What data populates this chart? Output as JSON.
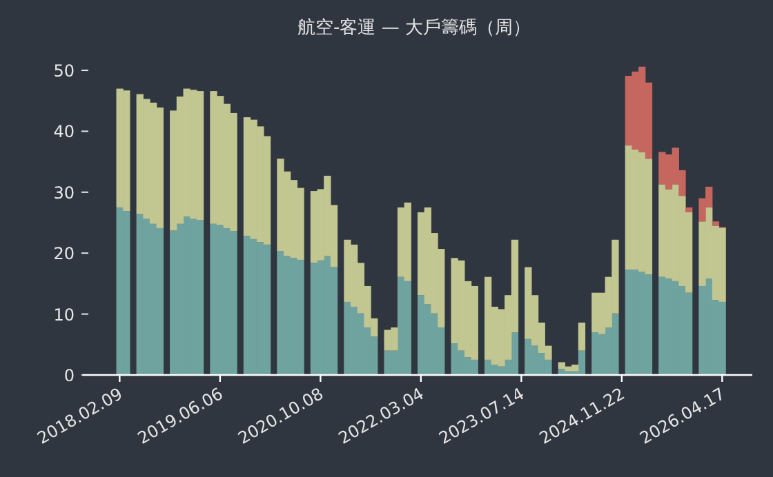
{
  "chart_data": {
    "type": "bar",
    "stacked": true,
    "title": "航空-客運 — 大戶籌碼（周）",
    "categories": [
      "2018.02.09",
      null,
      null,
      null,
      null,
      null,
      null,
      null,
      null,
      null,
      null,
      null,
      null,
      null,
      null,
      "2019.06.06",
      null,
      null,
      null,
      null,
      null,
      null,
      null,
      null,
      null,
      null,
      null,
      null,
      null,
      null,
      "2020.10.08",
      null,
      null,
      null,
      null,
      null,
      null,
      null,
      null,
      null,
      null,
      null,
      null,
      null,
      null,
      "2022.03.04",
      null,
      null,
      null,
      null,
      null,
      null,
      null,
      null,
      null,
      null,
      null,
      null,
      null,
      null,
      "2023.07.14",
      null,
      null,
      null,
      null,
      null,
      null,
      null,
      null,
      null,
      null,
      null,
      null,
      null,
      null,
      "2024.11.22",
      null,
      null,
      null,
      null,
      null,
      null,
      null,
      null,
      null,
      null,
      null,
      null,
      null,
      null,
      "2026.04.17"
    ],
    "series": [
      {
        "color": "#6fa39f",
        "values": [
          27.5,
          26.9,
          null,
          26.4,
          25.6,
          24.8,
          24.1,
          null,
          23.7,
          24.8,
          26.0,
          25.6,
          25.4,
          null,
          24.8,
          24.6,
          24.1,
          23.6,
          null,
          22.8,
          22.3,
          21.8,
          21.4,
          null,
          20.3,
          19.5,
          19.2,
          18.9,
          null,
          18.4,
          18.8,
          19.5,
          17.7,
          null,
          12.0,
          11.2,
          10.1,
          7.8,
          6.3,
          null,
          4.0,
          4.0,
          16.1,
          15.4,
          null,
          13.1,
          11.6,
          10.1,
          7.8,
          null,
          5.2,
          4.0,
          2.9,
          2.5,
          null,
          2.5,
          1.7,
          1.4,
          2.5,
          7.0,
          null,
          5.9,
          4.8,
          3.6,
          2.5,
          null,
          1.0,
          0.6,
          0.6,
          4.0,
          null,
          7.0,
          6.7,
          7.8,
          10.1,
          null,
          17.3,
          17.3,
          16.9,
          16.5,
          null,
          16.1,
          15.8,
          15.4,
          14.6,
          13.5,
          null,
          14.6,
          15.8,
          12.3,
          12.0
        ]
      },
      {
        "color": "#c2c691",
        "values": [
          19.5,
          19.8,
          null,
          19.7,
          19.7,
          19.9,
          19.8,
          null,
          19.7,
          20.9,
          21.0,
          21.2,
          21.2,
          null,
          21.8,
          21.2,
          20.4,
          19.4,
          null,
          19.5,
          19.6,
          19.0,
          17.8,
          null,
          15.2,
          13.9,
          12.8,
          11.8,
          null,
          11.8,
          11.7,
          13.2,
          10.2,
          null,
          10.2,
          10.2,
          8.3,
          6.8,
          3.0,
          null,
          3.4,
          3.8,
          11.4,
          12.9,
          null,
          13.6,
          15.9,
          13.2,
          12.9,
          null,
          14.0,
          14.8,
          12.5,
          12.1,
          null,
          13.6,
          9.5,
          9.4,
          10.6,
          15.2,
          null,
          11.8,
          8.3,
          5.0,
          2.3,
          null,
          1.1,
          0.8,
          1.1,
          4.6,
          null,
          6.5,
          6.8,
          8.3,
          12.1,
          null,
          20.4,
          19.7,
          19.7,
          19.0,
          null,
          15.2,
          14.7,
          15.9,
          14.8,
          13.2,
          null,
          10.6,
          11.7,
          12.2,
          12.1
        ]
      },
      {
        "color": "#c5675f",
        "values": [
          null,
          null,
          null,
          null,
          null,
          null,
          null,
          null,
          null,
          null,
          null,
          null,
          null,
          null,
          null,
          null,
          null,
          null,
          null,
          null,
          null,
          null,
          null,
          null,
          null,
          null,
          null,
          null,
          null,
          null,
          null,
          null,
          null,
          null,
          null,
          null,
          null,
          null,
          null,
          null,
          null,
          null,
          null,
          null,
          null,
          null,
          null,
          null,
          null,
          null,
          null,
          null,
          null,
          null,
          null,
          null,
          null,
          null,
          null,
          null,
          null,
          null,
          null,
          null,
          null,
          null,
          null,
          null,
          null,
          null,
          null,
          null,
          null,
          null,
          null,
          null,
          11.4,
          12.8,
          14.0,
          12.5,
          null,
          5.3,
          5.7,
          6.0,
          4.2,
          0.8,
          null,
          3.8,
          3.4,
          0.7,
          0.2
        ]
      }
    ],
    "ylim": [
      0,
      51
    ],
    "yticks": [
      0,
      10,
      20,
      30,
      40,
      50
    ]
  }
}
